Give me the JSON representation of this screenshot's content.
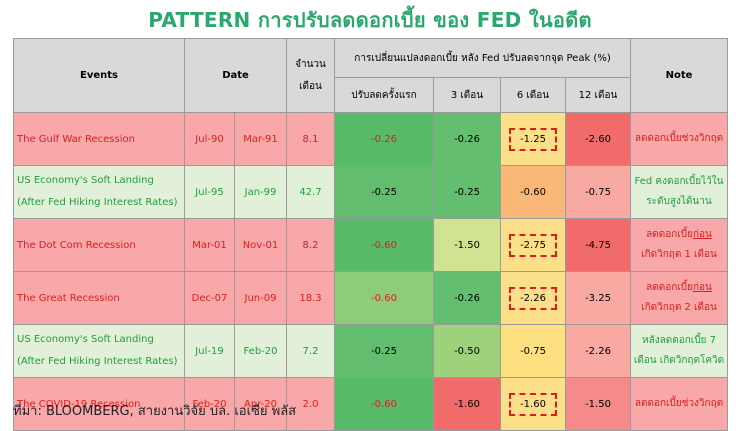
{
  "title": "PATTERN การปรับลดดอกเบี้ย ของ FED ในอดีต",
  "header": {
    "events": "Events",
    "date": "Date",
    "months": "จำนวน เดือน",
    "change_group": "การเปลี่ยนแปลงดอกเบี้ย หลัง Fed ปรับลดจากจุด Peak (%)",
    "col_first": "ปรับลดครั้งแรก",
    "col_3m": "3 เดือน",
    "col_6m": "6 เดือน",
    "col_12m": "12 เดือน",
    "note": "Note"
  },
  "rows": [
    {
      "event": "The Gulf War Recession",
      "event2": "",
      "start": "Jul-90",
      "end": "Mar-91",
      "months": "8.1",
      "first": "-0.26",
      "m3": "-0.26",
      "m6": "-1.25",
      "m12": "-2.60",
      "note1": "ลดดอกเบี้ยช่วงวิกฤต",
      "note_u": "",
      "note2": ""
    },
    {
      "event": "US Economy's Soft Landing",
      "event2": "(After Fed Hiking Interest Rates)",
      "start": "Jul-95",
      "end": "Jan-99",
      "months": "42.7",
      "first": "-0.25",
      "m3": "-0.25",
      "m6": "-0.60",
      "m12": "-0.75",
      "note1": "Fed คงดอกเบี้ยไว้ใน",
      "note_u": "",
      "note2": "ระดับสูงได้นาน"
    },
    {
      "event": "The Dot Com Recession",
      "event2": "",
      "start": "Mar-01",
      "end": "Nov-01",
      "months": "8.2",
      "first": "-0.60",
      "m3": "-1.50",
      "m6": "-2.75",
      "m12": "-4.75",
      "note1": "ลดดอกเบี้ย",
      "note_u": "ก่อน",
      "note2": "เกิดวิกฤต 1 เดือน"
    },
    {
      "event": "The Great Recession",
      "event2": "",
      "start": "Dec-07",
      "end": "Jun-09",
      "months": "18.3",
      "first": "-0.60",
      "m3": "-0.26",
      "m6": "-2.26",
      "m12": "-3.25",
      "note1": "ลดดอกเบี้ย",
      "note_u": "ก่อน",
      "note2": "เกิดวิกฤต 2 เดือน"
    },
    {
      "event": "US Economy's Soft Landing",
      "event2": "(After Fed Hiking Interest Rates)",
      "start": "Jul-19",
      "end": "Feb-20",
      "months": "7.2",
      "first": "-0.25",
      "m3": "-0.50",
      "m6": "-0.75",
      "m12": "-2.26",
      "note1": "หลังลดดอกเบี้ย 7",
      "note_u": "",
      "note2": "เดือน เกิดวิกฤตโควิด"
    },
    {
      "event": "The COVID-19 Recession",
      "event2": "",
      "start": "Feb-20",
      "end": "Apr-20",
      "months": "2.0",
      "first": "-0.60",
      "m3": "-1.60",
      "m6": "-1.60",
      "m12": "-1.50",
      "note1": "ลดดอกเบี้ยช่วงวิกฤต",
      "note_u": "",
      "note2": ""
    }
  ],
  "source": "ที่มา: BLOOMBERG, สายงานวิจัย บล. เอเซีย พลัส"
}
